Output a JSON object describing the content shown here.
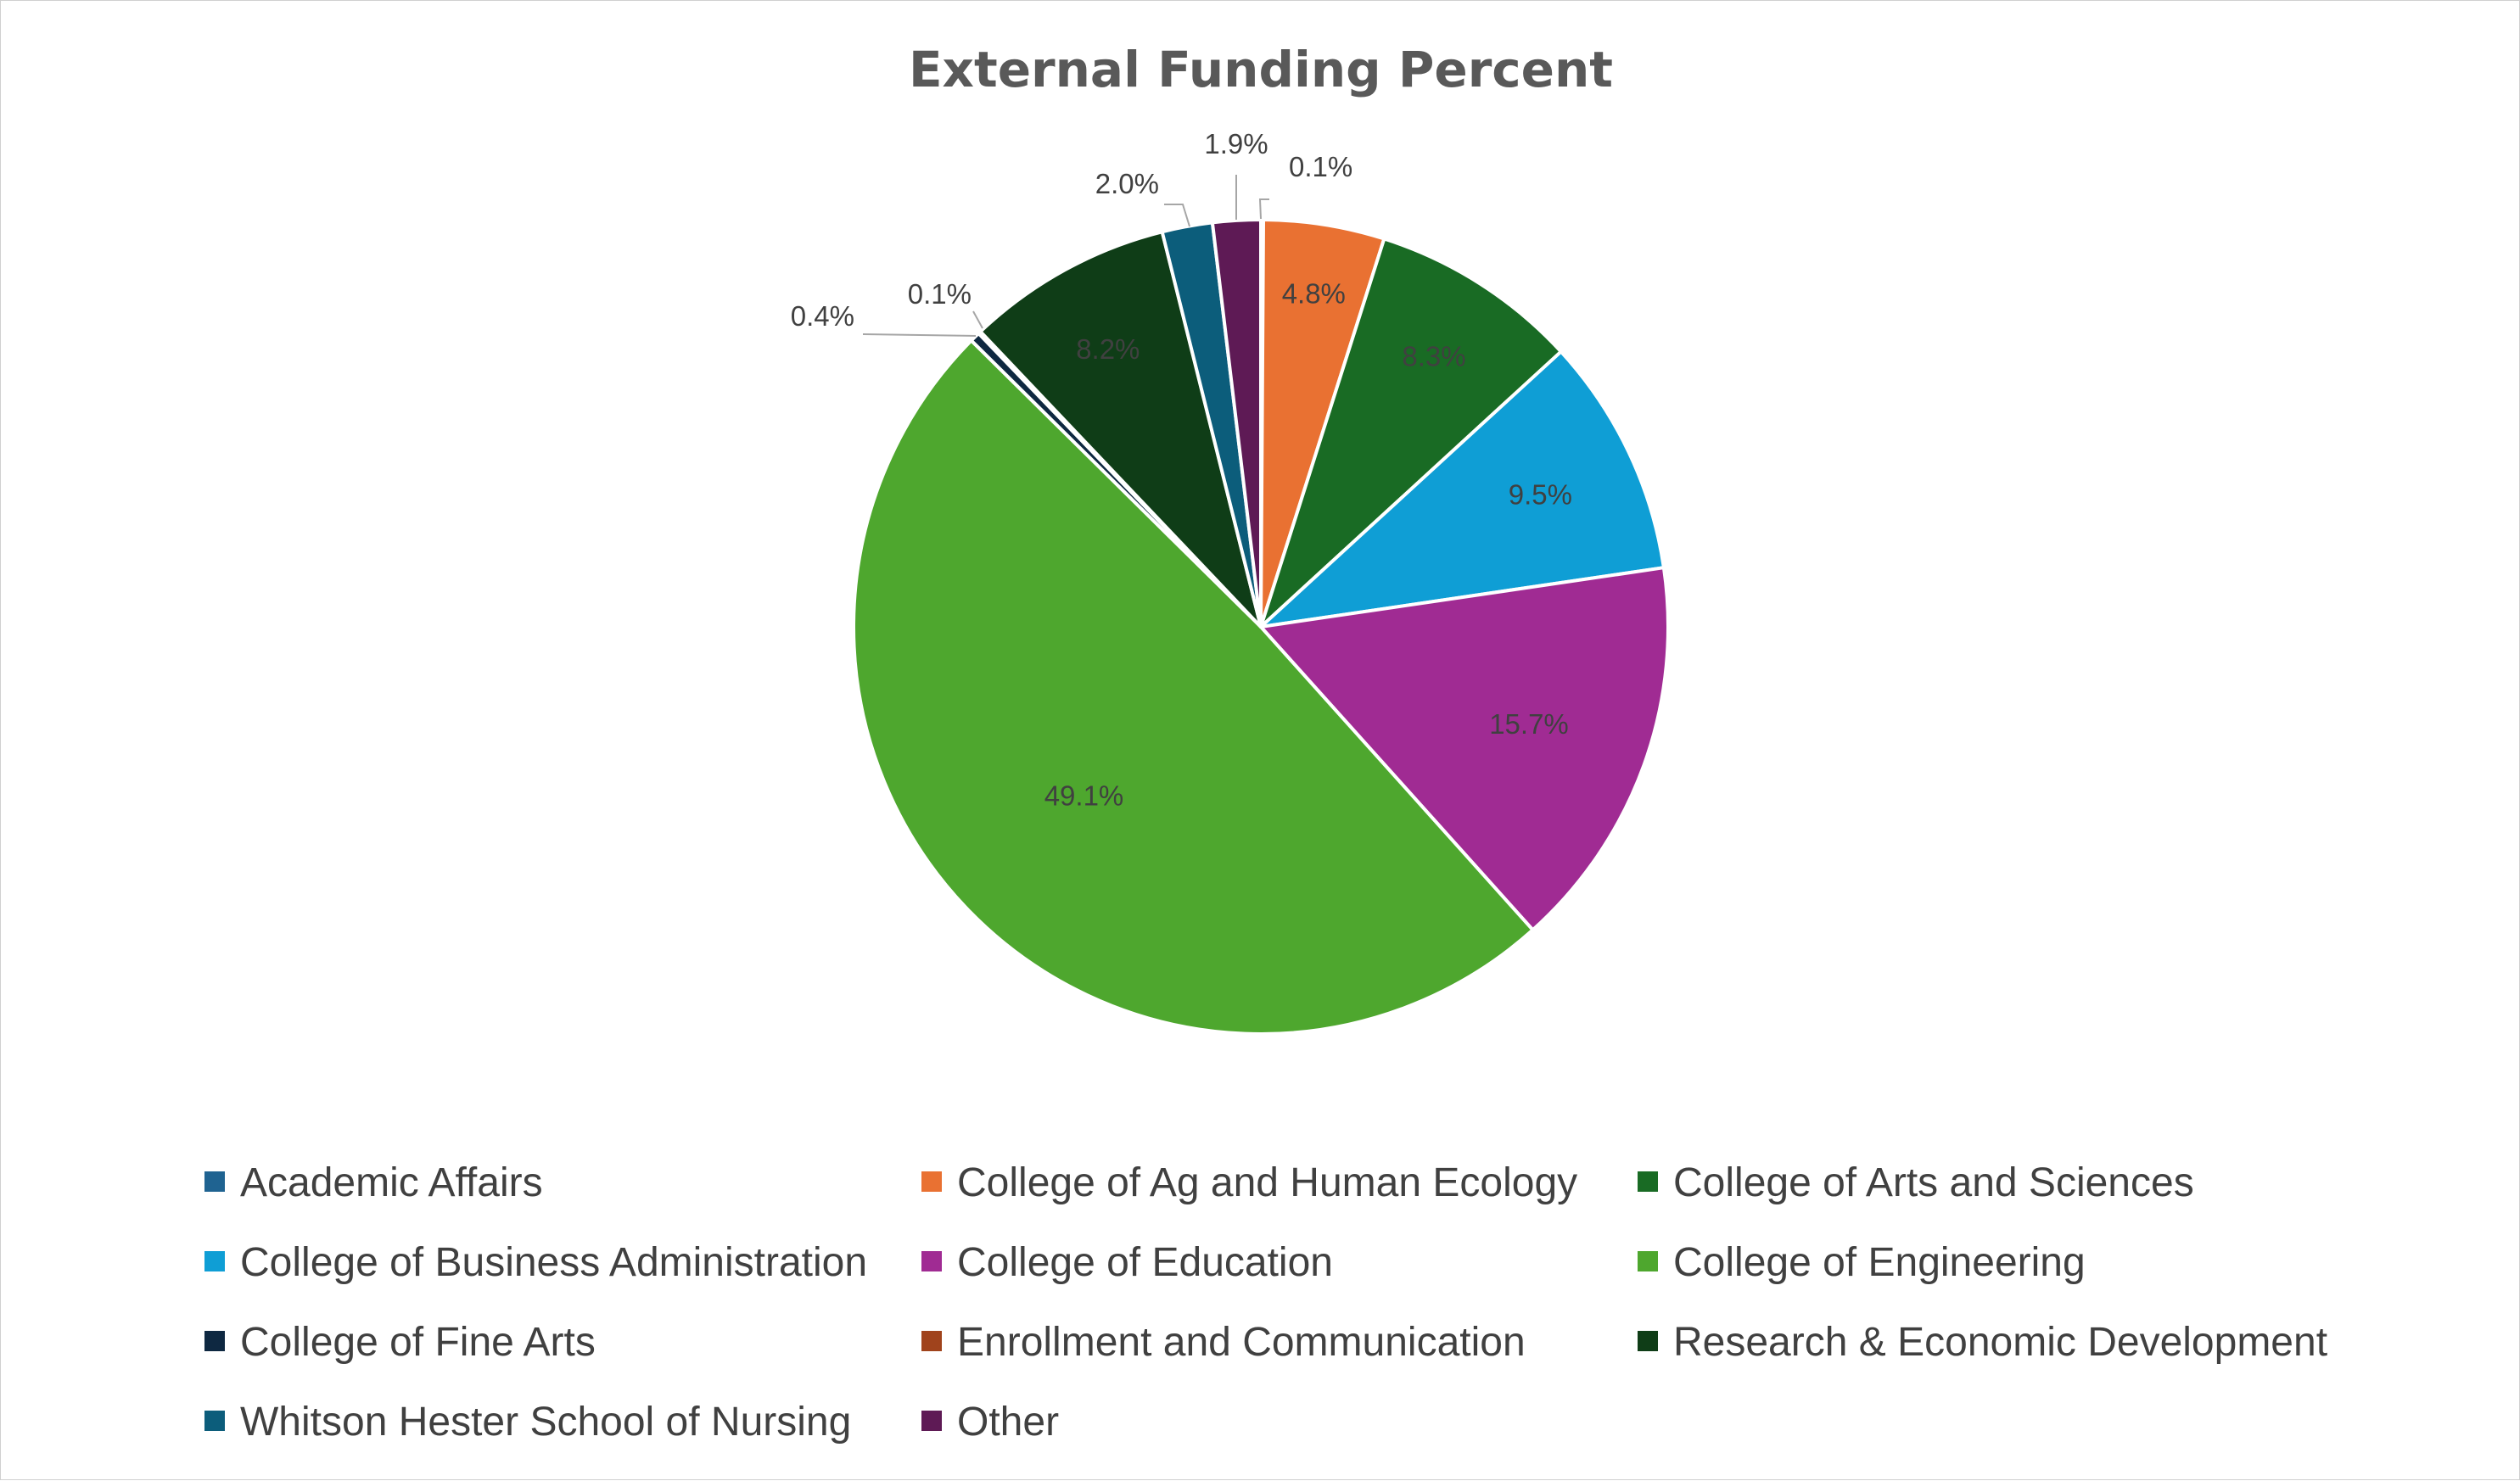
{
  "chart_data": {
    "type": "pie",
    "title": "External Funding Percent",
    "categories": [
      "Academic Affairs",
      "College of Ag and Human Ecology",
      "College of Arts and Sciences",
      "College of Business Administration",
      "College of Education",
      "College of Engineering",
      "College of Fine Arts",
      "Enrollment and Communication",
      "Research & Economic Development",
      "Whitson Hester School of Nursing",
      "Other"
    ],
    "values": [
      0.1,
      4.8,
      8.3,
      9.5,
      15.7,
      49.1,
      0.4,
      0.1,
      8.2,
      2.0,
      1.9
    ],
    "labels": [
      "0.1%",
      "4.8%",
      "8.3%",
      "9.5%",
      "15.7%",
      "49.1%",
      "0.4%",
      "0.1%",
      "8.2%",
      "2.0%",
      "1.9%"
    ],
    "colors": [
      "#1f6391",
      "#e97132",
      "#196b24",
      "#0f9ed5",
      "#a02b93",
      "#4ea72e",
      "#0e2841",
      "#a0431c",
      "#0f3d17",
      "#0c5d7b",
      "#5e1a55"
    ],
    "legend_position": "bottom",
    "start_angle": "12 o'clock, clockwise"
  }
}
